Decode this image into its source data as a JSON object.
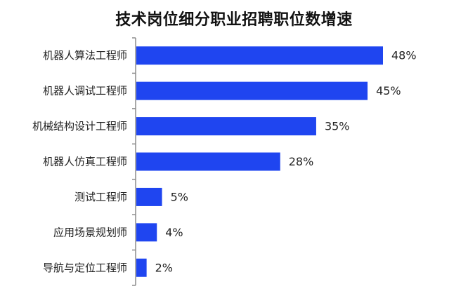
{
  "chart_data": {
    "type": "bar",
    "orientation": "horizontal",
    "title": "技术岗位细分职业招聘职位数增速",
    "xlabel": "",
    "ylabel": "",
    "categories": [
      "机器人算法工程师",
      "机器人调试工程师",
      "机械结构设计工程师",
      "机器人仿真工程师",
      "测试工程师",
      "应用场景规划师",
      "导航与定位工程师"
    ],
    "values": [
      48,
      45,
      35,
      28,
      5,
      4,
      2
    ],
    "value_labels": [
      "48%",
      "45%",
      "35%",
      "28%",
      "5%",
      "4%",
      "2%"
    ],
    "unit": "%",
    "xlim": [
      0,
      50
    ],
    "grid": false,
    "legend": "none",
    "colors": {
      "bar": "#1f45f0",
      "axis": "#8c8c8c",
      "text": "#222222"
    }
  }
}
